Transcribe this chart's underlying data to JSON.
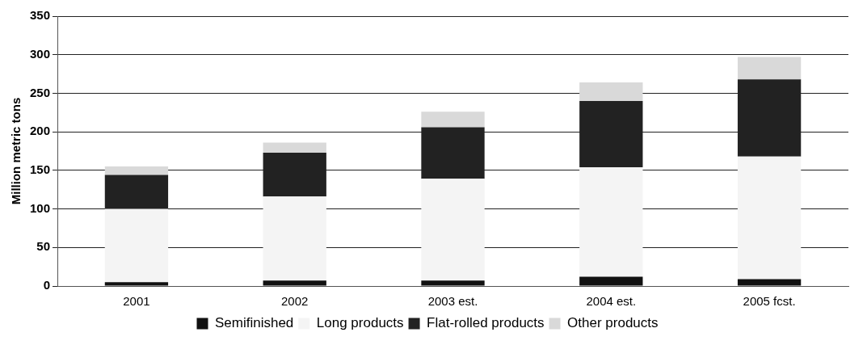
{
  "chart_data": {
    "type": "bar",
    "stacked": true,
    "ylabel": "Million metric tons",
    "categories": [
      "2001",
      "2002",
      "2003 est.",
      "2004 est.",
      "2005 fcst."
    ],
    "series": [
      {
        "name": "Semifinished",
        "color": "#111111",
        "values": [
          5,
          7,
          7,
          12,
          9
        ]
      },
      {
        "name": "Long products",
        "color": "#f4f4f4",
        "values": [
          95,
          109,
          132,
          142,
          159
        ]
      },
      {
        "name": "Flat-rolled products",
        "color": "#222222",
        "values": [
          44,
          57,
          67,
          86,
          100
        ]
      },
      {
        "name": "Other products",
        "color": "#d9d9d9",
        "values": [
          11,
          13,
          20,
          24,
          29
        ]
      }
    ],
    "ylim": [
      0,
      350
    ],
    "yticks": [
      0,
      50,
      100,
      150,
      200,
      250,
      300,
      350
    ],
    "grid": "y",
    "legend": "bottom"
  }
}
